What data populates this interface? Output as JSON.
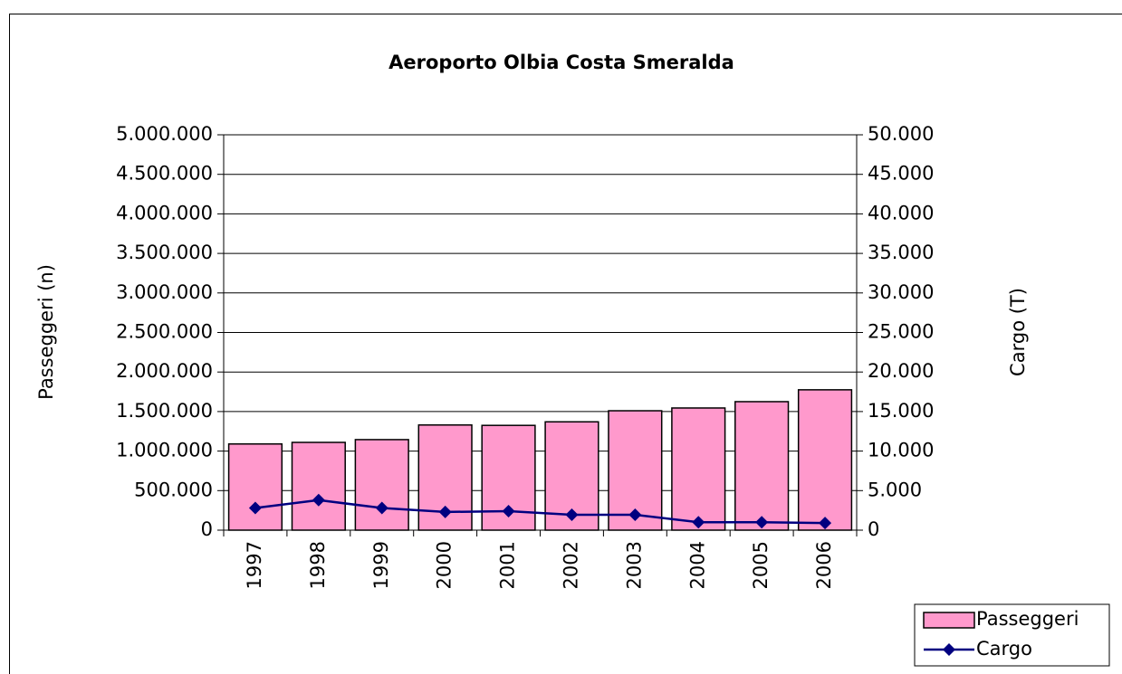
{
  "chart_data": {
    "type": "bar_line",
    "title": "Aeroporto Olbia Costa Smeralda",
    "y_label": "Passeggeri (n)",
    "y2_label": "Cargo (T)",
    "categories": [
      "1997",
      "1998",
      "1999",
      "2000",
      "2001",
      "2002",
      "2003",
      "2004",
      "2005",
      "2006"
    ],
    "series": [
      {
        "name": "Passeggeri",
        "type": "bar",
        "color": "#ff99cc",
        "values": [
          1090000,
          1110000,
          1145000,
          1330000,
          1325000,
          1370000,
          1510000,
          1545000,
          1625000,
          1775000
        ]
      },
      {
        "name": "Cargo",
        "type": "line",
        "axis": "y2",
        "color": "#000080",
        "values": [
          2800,
          3800,
          2800,
          2300,
          2400,
          1950,
          1950,
          1000,
          1000,
          900
        ]
      }
    ],
    "ylim": [
      0,
      5000000
    ],
    "yticks": [
      0,
      {
        "value": 500000,
        "label": "500.000"
      },
      {
        "value": 1000000,
        "label": "1.000.000"
      },
      {
        "value": 1500000,
        "label": "1.500.000"
      },
      {
        "value": 2000000,
        "label": "2.000.000"
      },
      {
        "value": 2500000,
        "label": "2.500.000"
      },
      {
        "value": 3000000,
        "label": "3.000.000"
      },
      {
        "value": 3500000,
        "label": "3.500.000"
      },
      {
        "value": 4000000,
        "label": "4.000.000"
      },
      {
        "value": 4500000,
        "label": "4.500.000"
      },
      {
        "value": 5000000,
        "label": "5.000.000"
      }
    ],
    "y2lim": [
      0,
      50000
    ],
    "y2ticks": [
      0,
      {
        "value": 5000,
        "label": "5.000"
      },
      {
        "value": 10000,
        "label": "10.000"
      },
      {
        "value": 15000,
        "label": "15.000"
      },
      {
        "value": 20000,
        "label": "20.000"
      },
      {
        "value": 25000,
        "label": "25.000"
      },
      {
        "value": 30000,
        "label": "30.000"
      },
      {
        "value": 35000,
        "label": "35.000"
      },
      {
        "value": 40000,
        "label": "40.000"
      },
      {
        "value": 45000,
        "label": "45.000"
      },
      {
        "value": 50000,
        "label": "50.000"
      }
    ],
    "grid": true,
    "legend": "bottom-right"
  }
}
